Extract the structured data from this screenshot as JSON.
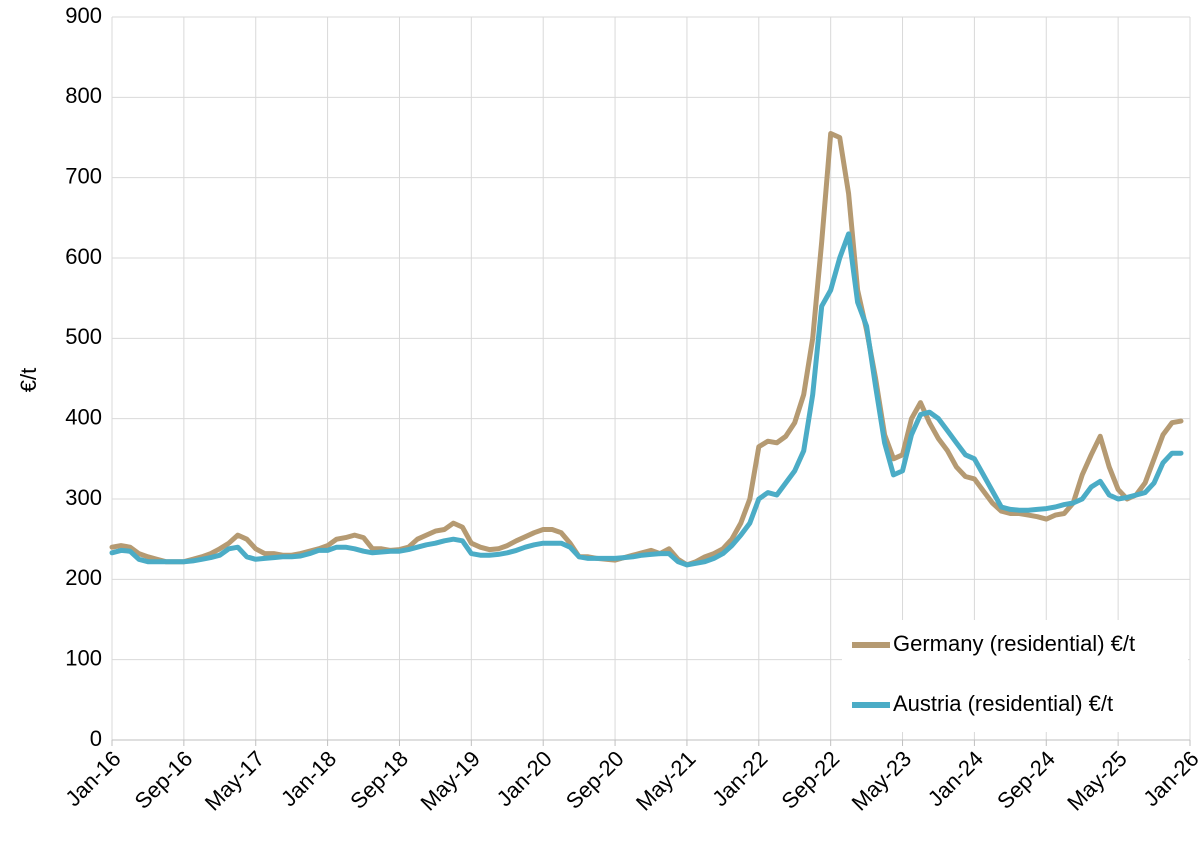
{
  "chart_data": {
    "type": "line",
    "y_label": "€/t",
    "categories": [
      "Jan-16",
      null,
      null,
      null,
      null,
      null,
      null,
      null,
      "Sep-16",
      null,
      null,
      null,
      null,
      null,
      null,
      null,
      "May-17",
      null,
      null,
      null,
      null,
      null,
      null,
      null,
      "Jan-18",
      null,
      null,
      null,
      null,
      null,
      null,
      null,
      "Sep-18",
      null,
      null,
      null,
      null,
      null,
      null,
      null,
      "May-19",
      null,
      null,
      null,
      null,
      null,
      null,
      null,
      "Jan-20",
      null,
      null,
      null,
      null,
      null,
      null,
      null,
      "Sep-20",
      null,
      null,
      null,
      null,
      null,
      null,
      null,
      "May-21",
      null,
      null,
      null,
      null,
      null,
      null,
      null,
      "Jan-22",
      null,
      null,
      null,
      null,
      null,
      null,
      null,
      "Sep-22",
      null,
      null,
      null,
      null,
      null,
      null,
      null,
      "May-23",
      null,
      null,
      null,
      null,
      null,
      null,
      null,
      "Jan-24",
      null,
      null,
      null,
      null,
      null,
      null,
      null,
      "Sep-24",
      null,
      null,
      null,
      null,
      null,
      null,
      null,
      "May-25",
      null,
      null,
      null,
      null,
      null,
      null,
      null,
      "Jan-26"
    ],
    "series": [
      {
        "name": "Germany (residential) €/t",
        "color": "#b59a72",
        "values": [
          240,
          242,
          240,
          232,
          228,
          225,
          222,
          222,
          222,
          225,
          228,
          232,
          238,
          245,
          255,
          250,
          238,
          232,
          232,
          230,
          230,
          232,
          235,
          238,
          242,
          250,
          252,
          255,
          252,
          238,
          238,
          236,
          237,
          240,
          250,
          255,
          260,
          262,
          270,
          265,
          245,
          240,
          237,
          238,
          242,
          248,
          253,
          258,
          262,
          262,
          258,
          245,
          228,
          228,
          226,
          225,
          224,
          227,
          230,
          233,
          236,
          232,
          238,
          225,
          218,
          222,
          228,
          232,
          238,
          250,
          270,
          300,
          365,
          372,
          370,
          378,
          395,
          430,
          500,
          620,
          755,
          750,
          680,
          560,
          510,
          450,
          380,
          350,
          355,
          400,
          420,
          395,
          375,
          360,
          340,
          328,
          325,
          310,
          295,
          285,
          282,
          282,
          280,
          278,
          275,
          280,
          282,
          295,
          330,
          355,
          378,
          340,
          312,
          300,
          305,
          320,
          350,
          380,
          395,
          397,
          null
        ]
      },
      {
        "name": "Austria (residential) €/t",
        "color": "#4bacc6",
        "values": [
          233,
          236,
          235,
          225,
          222,
          222,
          222,
          222,
          222,
          223,
          225,
          227,
          230,
          238,
          240,
          228,
          225,
          226,
          227,
          228,
          228,
          229,
          232,
          236,
          236,
          240,
          240,
          238,
          235,
          233,
          234,
          235,
          235,
          237,
          240,
          243,
          245,
          248,
          250,
          248,
          232,
          230,
          230,
          231,
          233,
          236,
          240,
          243,
          245,
          245,
          245,
          240,
          228,
          226,
          226,
          226,
          226,
          227,
          228,
          230,
          231,
          232,
          232,
          222,
          218,
          220,
          222,
          226,
          232,
          242,
          255,
          270,
          300,
          308,
          305,
          320,
          335,
          360,
          430,
          540,
          560,
          600,
          630,
          545,
          515,
          440,
          370,
          330,
          335,
          380,
          405,
          408,
          400,
          385,
          370,
          355,
          350,
          330,
          310,
          290,
          287,
          286,
          286,
          287,
          288,
          290,
          293,
          295,
          300,
          315,
          322,
          305,
          300,
          302,
          305,
          308,
          320,
          345,
          357,
          357,
          null
        ]
      }
    ],
    "ylim": [
      0,
      900
    ],
    "yticks": [
      0,
      100,
      200,
      300,
      400,
      500,
      600,
      700,
      800,
      900
    ],
    "grid": true,
    "legend": "lower right"
  }
}
